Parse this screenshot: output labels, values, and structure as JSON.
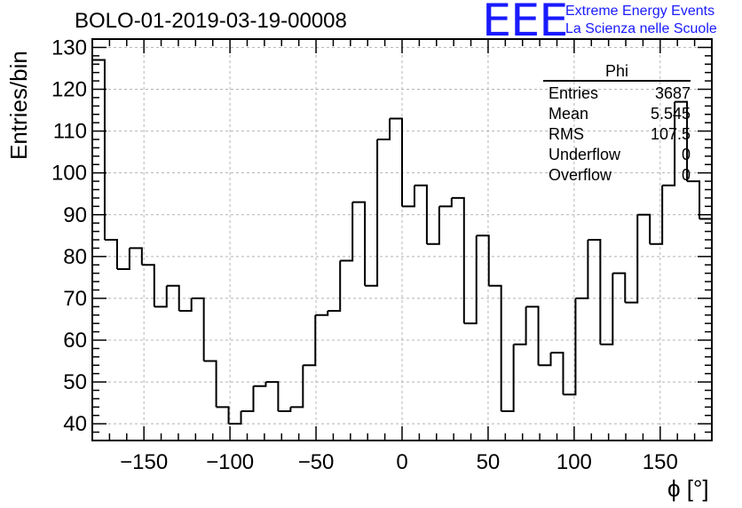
{
  "header": {
    "title": "BOLO-01-2019-03-19-00008",
    "logo_text": "EEE",
    "logo_line1": "Extreme Energy Events",
    "logo_line2": "La Scienza nelle Scuole"
  },
  "stats": {
    "title": "Phi",
    "rows": [
      {
        "label": "Entries",
        "value": "3687"
      },
      {
        "label": "Mean",
        "value": "5.545"
      },
      {
        "label": "RMS",
        "value": "107.5"
      },
      {
        "label": "Underflow",
        "value": "0"
      },
      {
        "label": "Overflow",
        "value": "0"
      }
    ]
  },
  "chart_data": {
    "type": "histogram",
    "xlabel": "ϕ [°]",
    "ylabel": "Entries/bin",
    "xlim": [
      -180,
      180
    ],
    "ylim": [
      36,
      132
    ],
    "xticks": [
      -150,
      -100,
      -50,
      0,
      50,
      100,
      150
    ],
    "xtick_labels": [
      "−150",
      "−100",
      "−50",
      "0",
      "50",
      "100",
      "150"
    ],
    "yticks": [
      40,
      50,
      60,
      70,
      80,
      90,
      100,
      110,
      120,
      130
    ],
    "grid": true,
    "bin_edges_start": -180,
    "bin_width": 7.2,
    "values": [
      127,
      84,
      77,
      82,
      78,
      68,
      73,
      67,
      70,
      55,
      44,
      40,
      43,
      49,
      50,
      43,
      44,
      54,
      66,
      67,
      79,
      93,
      73,
      108,
      113,
      92,
      97,
      83,
      92,
      94,
      64,
      85,
      73,
      43,
      59,
      68,
      54,
      57,
      47,
      70,
      84,
      59,
      76,
      69,
      90,
      83,
      97,
      117,
      98,
      89
    ]
  },
  "colors": {
    "line": "#000000",
    "grid": "#b4b4b4",
    "logo": "#1a1aff"
  }
}
